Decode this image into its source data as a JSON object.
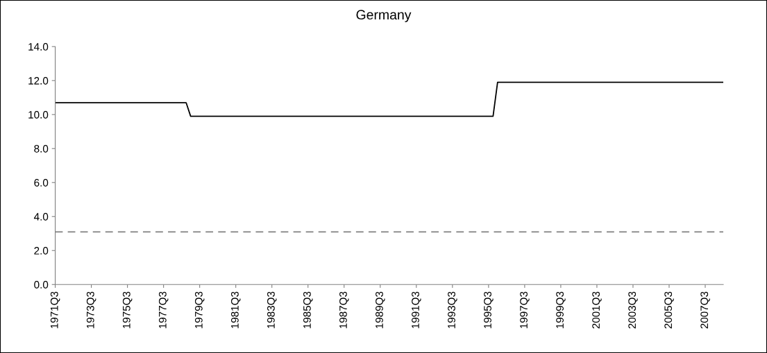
{
  "chart_data": {
    "type": "line",
    "title": "Germany",
    "categories": [
      "1971Q3",
      null,
      null,
      null,
      null,
      null,
      null,
      null,
      "1973Q3",
      null,
      null,
      null,
      null,
      null,
      null,
      null,
      "1975Q3",
      null,
      null,
      null,
      null,
      null,
      null,
      null,
      "1977Q3",
      null,
      null,
      null,
      null,
      null,
      null,
      null,
      "1979Q3",
      null,
      null,
      null,
      null,
      null,
      null,
      null,
      "1981Q3",
      null,
      null,
      null,
      null,
      null,
      null,
      null,
      "1983Q3",
      null,
      null,
      null,
      null,
      null,
      null,
      null,
      "1985Q3",
      null,
      null,
      null,
      null,
      null,
      null,
      null,
      "1987Q3",
      null,
      null,
      null,
      null,
      null,
      null,
      null,
      "1989Q3",
      null,
      null,
      null,
      null,
      null,
      null,
      null,
      "1991Q3",
      null,
      null,
      null,
      null,
      null,
      null,
      null,
      "1993Q3",
      null,
      null,
      null,
      null,
      null,
      null,
      null,
      "1995Q3",
      null,
      null,
      null,
      null,
      null,
      null,
      null,
      "1997Q3",
      null,
      null,
      null,
      null,
      null,
      null,
      null,
      "1999Q3",
      null,
      null,
      null,
      null,
      null,
      null,
      null,
      "2001Q3",
      null,
      null,
      null,
      null,
      null,
      null,
      null,
      "2003Q3",
      null,
      null,
      null,
      null,
      null,
      null,
      null,
      "2005Q3",
      null,
      null,
      null,
      null,
      null,
      null,
      null,
      "2007Q3",
      null,
      null,
      null,
      null
    ],
    "series": [
      {
        "color": "#000000",
        "values": [
          10.7,
          10.7,
          10.7,
          10.7,
          10.7,
          10.7,
          10.7,
          10.7,
          10.7,
          10.7,
          10.7,
          10.7,
          10.7,
          10.7,
          10.7,
          10.7,
          10.7,
          10.7,
          10.7,
          10.7,
          10.7,
          10.7,
          10.7,
          10.7,
          10.7,
          10.7,
          10.7,
          10.7,
          10.7,
          10.7,
          9.9,
          9.9,
          9.9,
          9.9,
          9.9,
          9.9,
          9.9,
          9.9,
          9.9,
          9.9,
          9.9,
          9.9,
          9.9,
          9.9,
          9.9,
          9.9,
          9.9,
          9.9,
          9.9,
          9.9,
          9.9,
          9.9,
          9.9,
          9.9,
          9.9,
          9.9,
          9.9,
          9.9,
          9.9,
          9.9,
          9.9,
          9.9,
          9.9,
          9.9,
          9.9,
          9.9,
          9.9,
          9.9,
          9.9,
          9.9,
          9.9,
          9.9,
          9.9,
          9.9,
          9.9,
          9.9,
          9.9,
          9.9,
          9.9,
          9.9,
          9.9,
          9.9,
          9.9,
          9.9,
          9.9,
          9.9,
          9.9,
          9.9,
          9.9,
          9.9,
          9.9,
          9.9,
          9.9,
          9.9,
          9.9,
          9.9,
          9.9,
          9.9,
          11.9,
          11.9,
          11.9,
          11.9,
          11.9,
          11.9,
          11.9,
          11.9,
          11.9,
          11.9,
          11.9,
          11.9,
          11.9,
          11.9,
          11.9,
          11.9,
          11.9,
          11.9,
          11.9,
          11.9,
          11.9,
          11.9,
          11.9,
          11.9,
          11.9,
          11.9,
          11.9,
          11.9,
          11.9,
          11.9,
          11.9,
          11.9,
          11.9,
          11.9,
          11.9,
          11.9,
          11.9,
          11.9,
          11.9,
          11.9,
          11.9,
          11.9,
          11.9,
          11.9,
          11.9,
          11.9,
          11.9,
          11.9,
          11.9,
          11.9,
          11.9
        ]
      }
    ],
    "ylim": [
      0,
      14
    ],
    "yticks": [
      {
        "value": 0,
        "label": "0.0"
      },
      {
        "value": 2,
        "label": "2.0"
      },
      {
        "value": 4,
        "label": "4.0"
      },
      {
        "value": 6,
        "label": "6.0"
      },
      {
        "value": 8,
        "label": "8.0"
      },
      {
        "value": 10,
        "label": "10.0"
      },
      {
        "value": 12,
        "label": "12.0"
      },
      {
        "value": 14,
        "label": "14.0"
      }
    ],
    "ref_lines": [
      {
        "axis": "y",
        "value": 3.1,
        "color": "#808080",
        "line_style": "dashed"
      }
    ],
    "grid": false,
    "legend": false,
    "marker": "none",
    "line_style": "solid"
  }
}
